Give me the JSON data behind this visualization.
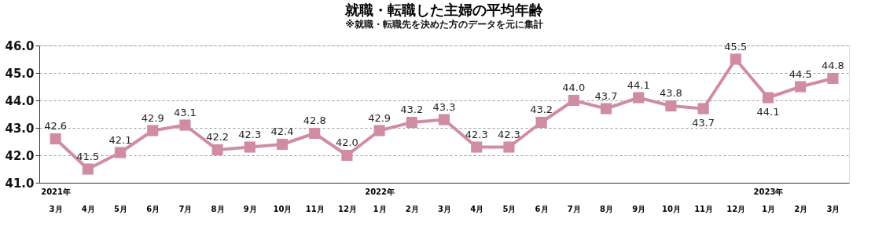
{
  "chart_data": {
    "type": "line",
    "title": "就職・転職した主婦の平均年齢",
    "subtitle": "※就職・転職先を決めた方のデータを元に集計",
    "categories": [
      "2021年\n3月",
      "4月",
      "5月",
      "6月",
      "7月",
      "8月",
      "9月",
      "10月",
      "11月",
      "12月",
      "2022年\n1月",
      "2月",
      "3月",
      "4月",
      "5月",
      "6月",
      "7月",
      "8月",
      "9月",
      "10月",
      "11月",
      "12月",
      "2023年\n1月",
      "2月",
      "3月"
    ],
    "series": [
      {
        "color": "#d08ca5",
        "values": [
          42.6,
          41.5,
          42.1,
          42.9,
          43.1,
          42.2,
          42.3,
          42.4,
          42.8,
          42.0,
          42.9,
          43.2,
          43.3,
          42.3,
          42.3,
          43.2,
          44.0,
          43.7,
          44.1,
          43.8,
          43.7,
          45.5,
          44.1,
          44.5,
          44.8
        ],
        "value_labels": [
          "42.6",
          "41.5",
          "42.1",
          "42.9",
          "43.1",
          "42.2",
          "42.3",
          "42.4",
          "42.8",
          "42.0",
          "42.9",
          "43.2",
          "43.3",
          "42.3",
          "42.3",
          "43.2",
          "44.0",
          "43.7",
          "44.1",
          "43.8",
          "43.7",
          "45.5",
          "44.1",
          "44.5",
          "44.8"
        ]
      }
    ],
    "ylim": [
      41,
      46
    ],
    "yticks": [
      {
        "value": 41,
        "label": "41.0"
      },
      {
        "value": 42,
        "label": "42.0"
      },
      {
        "value": 43,
        "label": "43.0"
      },
      {
        "value": 44,
        "label": "44.0"
      },
      {
        "value": 45,
        "label": "45.0"
      },
      {
        "value": 46,
        "label": "46.0"
      }
    ],
    "grid": "y",
    "marker": "square",
    "line_style": "solid"
  }
}
